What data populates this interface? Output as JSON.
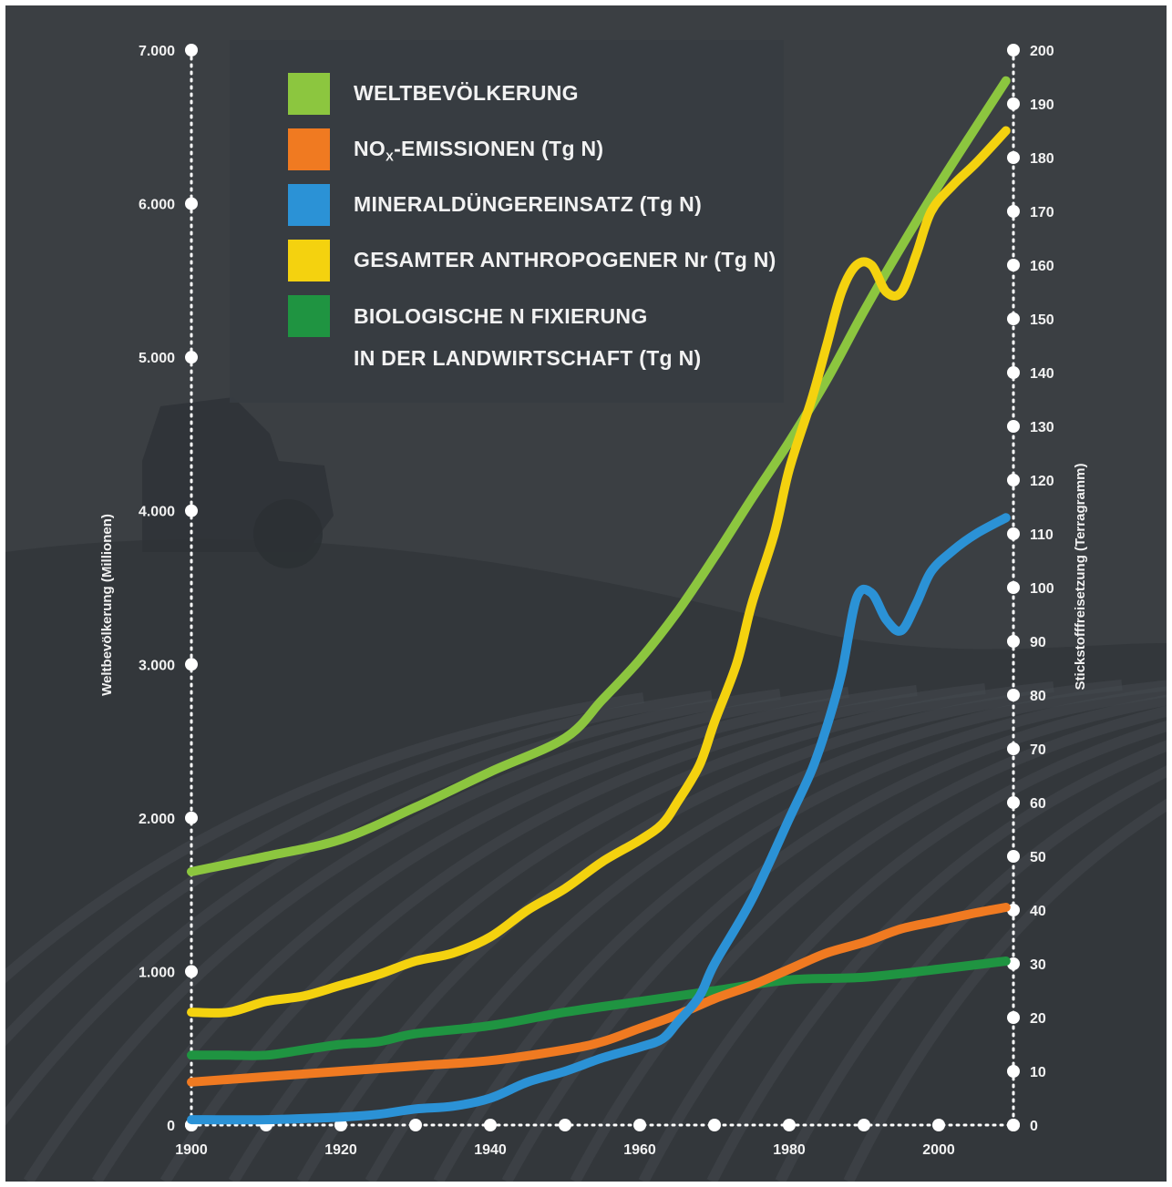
{
  "chart_data": {
    "type": "line",
    "x_ticks": [
      "1900",
      "1920",
      "1940",
      "1960",
      "1980",
      "2000"
    ],
    "xlim": [
      1900,
      2010
    ],
    "y_left": {
      "label": "Weltbevölkerung (Millionen)",
      "ticks": [
        "0",
        "1.000",
        "2.000",
        "3.000",
        "4.000",
        "5.000",
        "6.000",
        "7.000"
      ],
      "lim": [
        0,
        7000
      ]
    },
    "y_right": {
      "label": "Stickstofffreisetzung (Terragramm)",
      "ticks": [
        "0",
        "10",
        "20",
        "30",
        "40",
        "50",
        "60",
        "70",
        "80",
        "90",
        "100",
        "110",
        "120",
        "130",
        "140",
        "150",
        "160",
        "170",
        "180",
        "190",
        "200"
      ],
      "lim": [
        0,
        200
      ]
    },
    "legend_placement": "top-left",
    "series": [
      {
        "name": "WELTBEVÖLKERUNG",
        "color": "#8cc63f",
        "axis": "left",
        "points": [
          [
            1900,
            1650
          ],
          [
            1910,
            1750
          ],
          [
            1920,
            1860
          ],
          [
            1930,
            2070
          ],
          [
            1940,
            2300
          ],
          [
            1950,
            2520
          ],
          [
            1955,
            2770
          ],
          [
            1960,
            3030
          ],
          [
            1965,
            3340
          ],
          [
            1970,
            3700
          ],
          [
            1975,
            4080
          ],
          [
            1980,
            4450
          ],
          [
            1985,
            4850
          ],
          [
            1990,
            5300
          ],
          [
            1995,
            5720
          ],
          [
            2000,
            6120
          ],
          [
            2005,
            6500
          ],
          [
            2009,
            6800
          ]
        ]
      },
      {
        "name": "NO",
        "name_sub": "X",
        "name_suffix": "-EMISSIONEN (Tg N)",
        "color": "#f07a21",
        "axis": "right",
        "points": [
          [
            1900,
            8
          ],
          [
            1910,
            9
          ],
          [
            1920,
            10
          ],
          [
            1930,
            11
          ],
          [
            1940,
            12
          ],
          [
            1950,
            14
          ],
          [
            1955,
            15.5
          ],
          [
            1960,
            18
          ],
          [
            1965,
            20.5
          ],
          [
            1970,
            23.5
          ],
          [
            1975,
            26
          ],
          [
            1980,
            29
          ],
          [
            1985,
            32
          ],
          [
            1990,
            34
          ],
          [
            1995,
            36.5
          ],
          [
            2000,
            38
          ],
          [
            2005,
            39.5
          ],
          [
            2009,
            40.5
          ]
        ]
      },
      {
        "name": "MINERALDÜNGEREINSATZ (Tg N)",
        "color": "#2b92d6",
        "axis": "right",
        "points": [
          [
            1900,
            1
          ],
          [
            1910,
            1
          ],
          [
            1920,
            1.5
          ],
          [
            1925,
            2
          ],
          [
            1930,
            3
          ],
          [
            1935,
            3.5
          ],
          [
            1940,
            5
          ],
          [
            1945,
            8
          ],
          [
            1950,
            10
          ],
          [
            1955,
            12.5
          ],
          [
            1960,
            14.5
          ],
          [
            1963,
            16
          ],
          [
            1965,
            19
          ],
          [
            1968,
            24
          ],
          [
            1970,
            30
          ],
          [
            1975,
            42
          ],
          [
            1980,
            57
          ],
          [
            1983,
            66
          ],
          [
            1985,
            74
          ],
          [
            1987,
            84
          ],
          [
            1989,
            98
          ],
          [
            1991,
            99
          ],
          [
            1993,
            94
          ],
          [
            1995,
            92
          ],
          [
            1997,
            97
          ],
          [
            1999,
            103
          ],
          [
            2002,
            107
          ],
          [
            2005,
            110
          ],
          [
            2009,
            113
          ]
        ]
      },
      {
        "name": "GESAMTER ANTHROPOGENER Nr (Tg N)",
        "color": "#f4d20f",
        "axis": "right",
        "points": [
          [
            1900,
            21
          ],
          [
            1905,
            21
          ],
          [
            1910,
            23
          ],
          [
            1915,
            24
          ],
          [
            1920,
            26
          ],
          [
            1925,
            28
          ],
          [
            1930,
            30.5
          ],
          [
            1935,
            32
          ],
          [
            1940,
            35
          ],
          [
            1945,
            40
          ],
          [
            1950,
            44
          ],
          [
            1955,
            49
          ],
          [
            1960,
            53
          ],
          [
            1963,
            56
          ],
          [
            1965,
            60
          ],
          [
            1968,
            67
          ],
          [
            1970,
            75
          ],
          [
            1973,
            86
          ],
          [
            1975,
            97
          ],
          [
            1978,
            110
          ],
          [
            1980,
            122
          ],
          [
            1983,
            135
          ],
          [
            1985,
            145
          ],
          [
            1987,
            155
          ],
          [
            1989,
            160
          ],
          [
            1991,
            160
          ],
          [
            1993,
            155
          ],
          [
            1995,
            155
          ],
          [
            1997,
            162
          ],
          [
            1999,
            170
          ],
          [
            2002,
            175
          ],
          [
            2005,
            179
          ],
          [
            2009,
            185
          ]
        ]
      },
      {
        "name": "BIOLOGISCHE N FIXIERUNG",
        "name_line2": "IN DER LANDWIRTSCHAFT (Tg N)",
        "color": "#1f9441",
        "axis": "right",
        "points": [
          [
            1900,
            13
          ],
          [
            1905,
            13
          ],
          [
            1910,
            13
          ],
          [
            1915,
            14
          ],
          [
            1920,
            15
          ],
          [
            1925,
            15.5
          ],
          [
            1930,
            17
          ],
          [
            1940,
            18.5
          ],
          [
            1950,
            21
          ],
          [
            1960,
            23
          ],
          [
            1970,
            25
          ],
          [
            1980,
            27
          ],
          [
            1990,
            27.5
          ],
          [
            2000,
            29
          ],
          [
            2009,
            30.5
          ]
        ]
      }
    ]
  },
  "legend": {
    "items": [
      {
        "label": "WELTBEVÖLKERUNG",
        "color": "#8cc63f"
      },
      {
        "label_main": "NO",
        "label_sub": "X",
        "label_suffix": "-EMISSIONEN (Tg N)",
        "color": "#f07a21"
      },
      {
        "label": "MINERALDÜNGEREINSATZ (Tg N)",
        "color": "#2b92d6"
      },
      {
        "label": "GESAMTER ANTHROPOGENER Nr (Tg N)",
        "color": "#f4d20f"
      },
      {
        "label_line1": "BIOLOGISCHE N FIXIERUNG",
        "label_line2": "IN DER LANDWIRTSCHAFT (Tg N)",
        "color": "#1f9441"
      }
    ]
  },
  "colors": {
    "background": "#3b3f43",
    "axis_dots": "#ffffff",
    "text": "#f2f2f2"
  }
}
